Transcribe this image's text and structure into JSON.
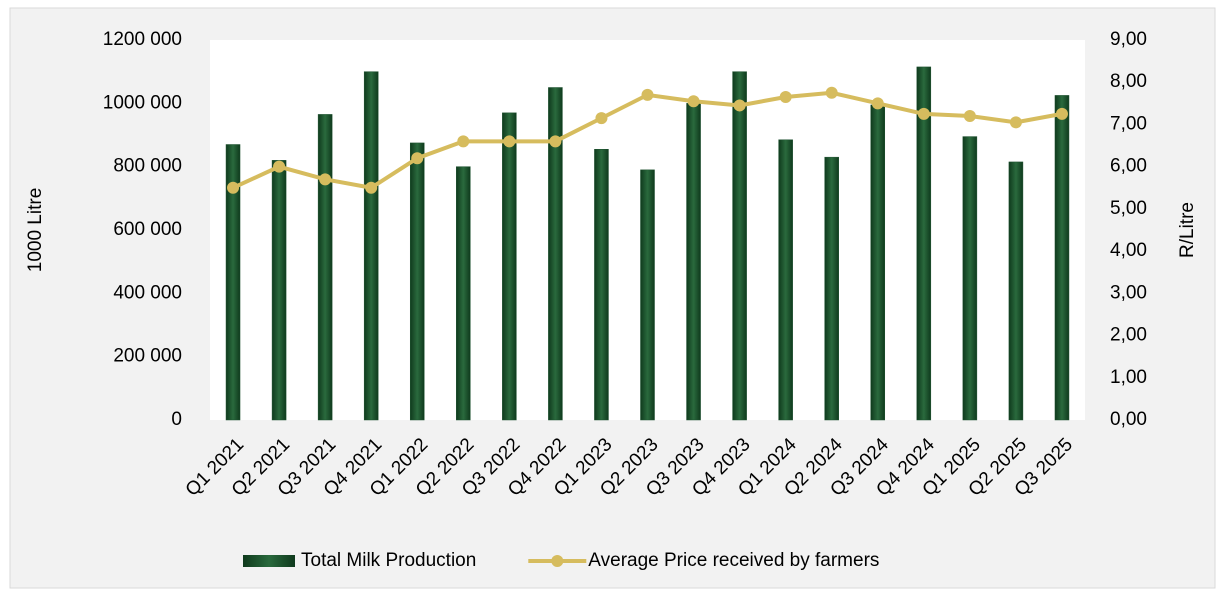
{
  "chart_data": {
    "type": "bar_line",
    "y_label": "1000 Litre",
    "y2_label": "R/Litre",
    "categories": [
      "Q1  2021",
      "Q2  2021",
      "Q3  2021",
      "Q4  2021",
      "Q1  2022",
      "Q2  2022",
      "Q3  2022",
      "Q4 2022",
      "Q1  2023",
      "Q2 2023",
      "Q3 2023",
      "Q4 2023",
      "Q1 2024",
      "Q2 2024",
      "Q3 2024",
      "Q4 2024",
      "Q1 2025",
      "Q2 2025",
      "Q3 2025"
    ],
    "series": [
      {
        "name": "Total Milk Production",
        "type": "bar",
        "color": "#1f5230",
        "axis": "y",
        "values": [
          870000,
          820000,
          965000,
          1100000,
          875000,
          800000,
          970000,
          1050000,
          855000,
          790000,
          1000000,
          1100000,
          885000,
          830000,
          995000,
          1115000,
          895000,
          815000,
          1025000
        ]
      },
      {
        "name": "Average Price received by farmers",
        "type": "line",
        "color": "#d6bc5e",
        "axis": "y2",
        "values": [
          5.5,
          6.0,
          5.7,
          5.5,
          6.2,
          6.6,
          6.6,
          6.6,
          7.15,
          7.7,
          7.55,
          7.45,
          7.65,
          7.75,
          7.5,
          7.25,
          7.2,
          7.05,
          7.25
        ]
      }
    ],
    "ylim": [
      0,
      1200000
    ],
    "yticks": [
      0,
      {
        "value": 200000,
        "label": "200 000"
      },
      {
        "value": 400000,
        "label": "400 000"
      },
      {
        "value": 600000,
        "label": "600 000"
      },
      {
        "value": 800000,
        "label": "800 000"
      },
      {
        "value": 1000000,
        "label": "1000 000"
      },
      {
        "value": 1200000,
        "label": "1200 000"
      }
    ],
    "y2lim": [
      0,
      9
    ],
    "y2ticks": [
      {
        "value": 0,
        "label": "0,00"
      },
      {
        "value": 1,
        "label": "1,00"
      },
      {
        "value": 2,
        "label": "2,00"
      },
      {
        "value": 3,
        "label": "3,00"
      },
      {
        "value": 4,
        "label": "4,00"
      },
      {
        "value": 5,
        "label": "5,00"
      },
      {
        "value": 6,
        "label": "6,00"
      },
      {
        "value": 7,
        "label": "7,00"
      },
      {
        "value": 8,
        "label": "8,00"
      },
      {
        "value": 9,
        "label": "9,00"
      }
    ],
    "legend": "bottom"
  }
}
